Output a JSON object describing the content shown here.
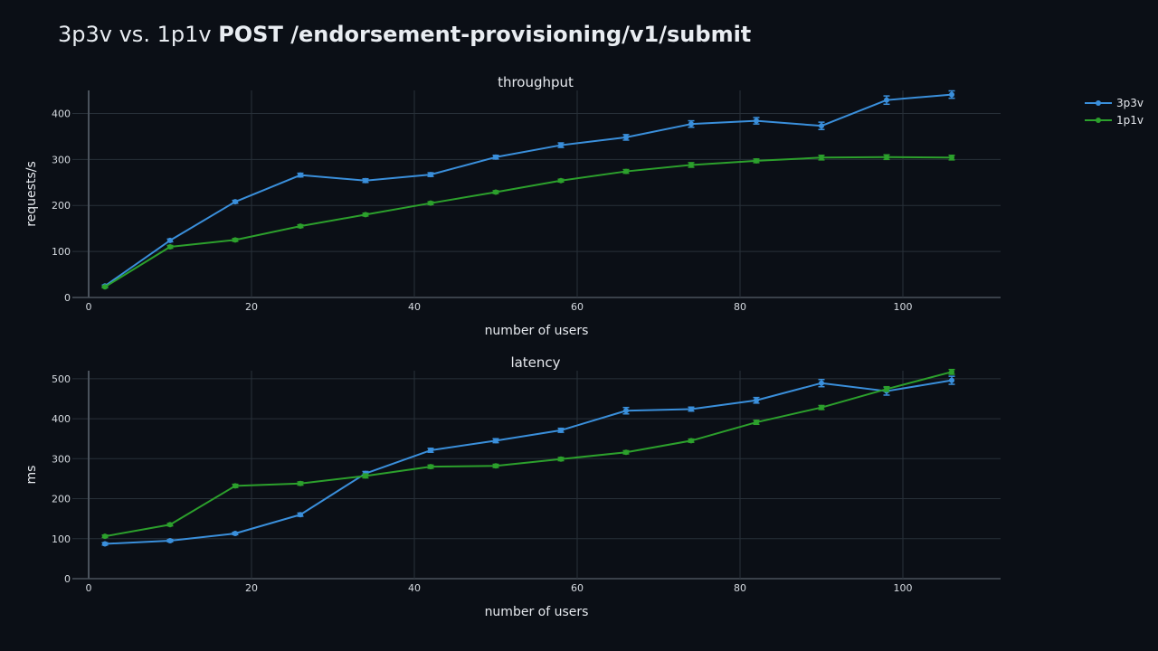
{
  "title": {
    "prefix": "3p3v vs. 1p1v",
    "endpoint": "POST /endorsement-provisioning/v1/submit"
  },
  "colors": {
    "background": "#0b0f16",
    "grid": "#283039",
    "axis_line": "#4a525c",
    "text": "#e6e9ee",
    "tick_text": "#d6dbe1",
    "series_3p3v": "#3a8fdb",
    "series_1p1v": "#2ca02c"
  },
  "legend": {
    "placement": "top-right",
    "entries": [
      "3p3v",
      "1p1v"
    ]
  },
  "chart_data": [
    {
      "type": "line",
      "title": "throughput",
      "xlabel": "number of users",
      "ylabel": "requests/s",
      "xlim": [
        -2,
        112
      ],
      "ylim": [
        0,
        450
      ],
      "xticks": [
        0,
        20,
        40,
        60,
        80,
        100
      ],
      "yticks": [
        0,
        100,
        200,
        300,
        400
      ],
      "grid": true,
      "x": [
        2,
        10,
        18,
        26,
        34,
        42,
        50,
        58,
        66,
        74,
        82,
        90,
        98,
        106
      ],
      "series": [
        {
          "name": "3p3v",
          "color": "#3a8fdb",
          "values": [
            25,
            124,
            208,
            266,
            254,
            267,
            305,
            331,
            348,
            377,
            384,
            373,
            429,
            441
          ],
          "errors": [
            2,
            3,
            3,
            4,
            4,
            4,
            4,
            5,
            6,
            7,
            7,
            8,
            9,
            8
          ]
        },
        {
          "name": "1p1v",
          "color": "#2ca02c",
          "values": [
            23,
            110,
            125,
            155,
            180,
            205,
            229,
            254,
            274,
            288,
            297,
            304,
            305,
            304
          ],
          "errors": [
            2,
            3,
            3,
            3,
            3,
            3,
            3,
            3,
            4,
            5,
            4,
            5,
            5,
            5
          ]
        }
      ]
    },
    {
      "type": "line",
      "title": "latency",
      "xlabel": "number of users",
      "ylabel": "ms",
      "xlim": [
        -2,
        112
      ],
      "ylim": [
        0,
        520
      ],
      "xticks": [
        0,
        20,
        40,
        60,
        80,
        100
      ],
      "yticks": [
        0,
        100,
        200,
        300,
        400,
        500
      ],
      "grid": true,
      "x": [
        2,
        10,
        18,
        26,
        34,
        42,
        50,
        58,
        66,
        74,
        82,
        90,
        98,
        106
      ],
      "series": [
        {
          "name": "3p3v",
          "color": "#3a8fdb",
          "values": [
            87,
            95,
            113,
            160,
            263,
            321,
            345,
            371,
            420,
            424,
            446,
            489,
            469,
            496
          ],
          "errors": [
            3,
            3,
            3,
            4,
            5,
            5,
            5,
            5,
            8,
            5,
            7,
            9,
            10,
            10
          ]
        },
        {
          "name": "1p1v",
          "color": "#2ca02c",
          "values": [
            106,
            135,
            232,
            238,
            257,
            280,
            282,
            299,
            316,
            345,
            391,
            428,
            474,
            517
          ],
          "errors": [
            3,
            3,
            4,
            4,
            5,
            4,
            4,
            4,
            4,
            4,
            5,
            5,
            6,
            6
          ]
        }
      ]
    }
  ]
}
